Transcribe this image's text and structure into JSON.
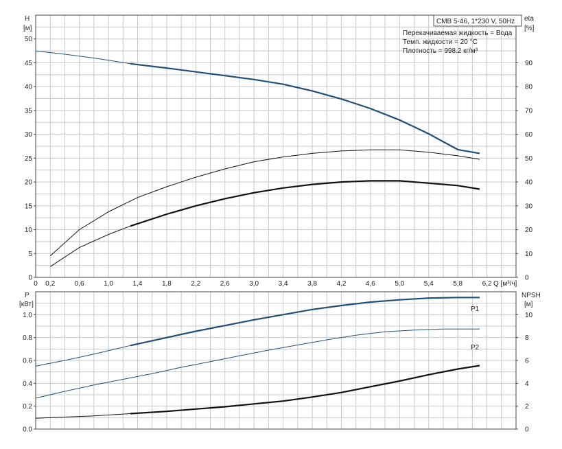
{
  "chart_data": [
    {
      "type": "line",
      "panel": "top",
      "model_label": "CMB 5-46, 1*230 V, 50Hz",
      "info_lines": [
        "Перекачиваемая жидкость = Вода",
        "Темп. жидкости = 20 °C",
        "Плотность = 998.2 кг/м³"
      ],
      "x_label": "Q [м³/ч]",
      "y_left_label_1": "H",
      "y_left_label_2": "[м]",
      "y_right_label_1": "eta",
      "y_right_label_2": "[%]",
      "xlim": [
        0,
        6.6
      ],
      "ylim_left": [
        0,
        55
      ],
      "ylim_right": [
        0,
        110
      ],
      "x_ticks": [
        "0",
        "0,2",
        "0,6",
        "1,0",
        "1,4",
        "1,8",
        "2,2",
        "2,6",
        "3,0",
        "3,4",
        "3,8",
        "4,2",
        "4,6",
        "5,0",
        "5,4",
        "5,8",
        "6,2"
      ],
      "y_left_ticks": [
        "0",
        "5",
        "10",
        "15",
        "20",
        "25",
        "30",
        "35",
        "40",
        "45",
        "50"
      ],
      "y_right_ticks": [
        "0",
        "10",
        "20",
        "30",
        "40",
        "50",
        "60",
        "70",
        "80",
        "90"
      ],
      "grid": true,
      "series": [
        {
          "axis": "left",
          "color": "#1f4e79",
          "thin_x": [
            0.0,
            0.4,
            0.8,
            1.3
          ],
          "thin_y": [
            47.5,
            46.8,
            46.0,
            44.8
          ],
          "bold_x": [
            1.3,
            1.8,
            2.2,
            2.6,
            3.0,
            3.4,
            3.8,
            4.2,
            4.6,
            5.0,
            5.4,
            5.8,
            6.1
          ],
          "bold_y": [
            44.8,
            43.9,
            43.1,
            42.3,
            41.5,
            40.5,
            39.1,
            37.4,
            35.4,
            33.0,
            30.1,
            26.8,
            26.0
          ]
        },
        {
          "axis": "right",
          "color": "#111111",
          "thin_x": [
            0.2,
            0.6,
            1.0,
            1.4,
            1.8,
            2.2,
            2.6,
            3.0,
            3.4,
            3.8,
            4.2,
            4.6,
            5.0,
            5.4,
            5.8,
            6.1
          ],
          "thin_y": [
            9,
            20,
            27.5,
            33.5,
            38,
            42,
            45.5,
            48.5,
            50.5,
            52,
            53,
            53.5,
            53.5,
            52.5,
            51,
            49.5
          ],
          "bold_x": [],
          "bold_y": []
        },
        {
          "axis": "right",
          "color": "#111111",
          "thin_x": [
            0.2,
            0.6,
            1.0,
            1.3
          ],
          "thin_y": [
            4.5,
            12.5,
            18,
            21.5
          ],
          "bold_x": [
            1.3,
            1.8,
            2.2,
            2.6,
            3.0,
            3.4,
            3.8,
            4.2,
            4.6,
            5.0,
            5.4,
            5.8,
            6.1
          ],
          "bold_y": [
            21.5,
            26.5,
            30,
            33,
            35.5,
            37.5,
            39,
            40,
            40.5,
            40.5,
            39.5,
            38.5,
            37
          ]
        }
      ]
    },
    {
      "type": "line",
      "panel": "bottom",
      "y_left_label_1": "P",
      "y_left_label_2": "[кВт]",
      "y_right_label_1": "NPSH",
      "y_right_label_2": "[м]",
      "xlim": [
        0,
        6.6
      ],
      "ylim_left": [
        0,
        1.2
      ],
      "ylim_right": [
        0,
        12
      ],
      "y_left_ticks": [
        "0.0",
        "0.2",
        "0.4",
        "0.6",
        "0.8",
        "1.0"
      ],
      "y_right_ticks": [
        "0",
        "2",
        "4",
        "6",
        "8",
        "10"
      ],
      "grid": true,
      "series": [
        {
          "name": "P1",
          "axis": "left",
          "color": "#1f4e79",
          "thin_x": [
            0.0,
            0.4,
            0.8,
            1.3
          ],
          "thin_y": [
            0.55,
            0.6,
            0.655,
            0.73
          ],
          "bold_x": [
            1.3,
            1.8,
            2.2,
            2.6,
            3.0,
            3.4,
            3.8,
            4.2,
            4.6,
            5.0,
            5.4,
            5.8,
            6.1
          ],
          "bold_y": [
            0.73,
            0.8,
            0.855,
            0.905,
            0.955,
            1.0,
            1.045,
            1.08,
            1.11,
            1.13,
            1.145,
            1.15,
            1.15
          ]
        },
        {
          "name": "P2",
          "axis": "left",
          "color": "#1f4e79",
          "thin_x": [
            0.0,
            0.4,
            0.8,
            1.2,
            1.6,
            2.0,
            2.4,
            2.8,
            3.2,
            3.6,
            4.0,
            4.4,
            4.8,
            5.2,
            5.6,
            6.1
          ],
          "thin_y": [
            0.27,
            0.33,
            0.385,
            0.435,
            0.485,
            0.54,
            0.59,
            0.64,
            0.69,
            0.735,
            0.78,
            0.82,
            0.85,
            0.865,
            0.875,
            0.875
          ],
          "bold_x": [],
          "bold_y": []
        },
        {
          "axis": "right",
          "color": "#111111",
          "thin_x": [
            0.0,
            0.4,
            0.8,
            1.3
          ],
          "thin_y": [
            0.95,
            1.05,
            1.15,
            1.35
          ],
          "bold_x": [
            1.3,
            1.8,
            2.2,
            2.6,
            3.0,
            3.4,
            3.8,
            4.2,
            4.6,
            5.0,
            5.4,
            5.8,
            6.1
          ],
          "bold_y": [
            1.35,
            1.55,
            1.75,
            1.95,
            2.2,
            2.45,
            2.8,
            3.2,
            3.7,
            4.2,
            4.75,
            5.25,
            5.55
          ]
        }
      ]
    }
  ]
}
